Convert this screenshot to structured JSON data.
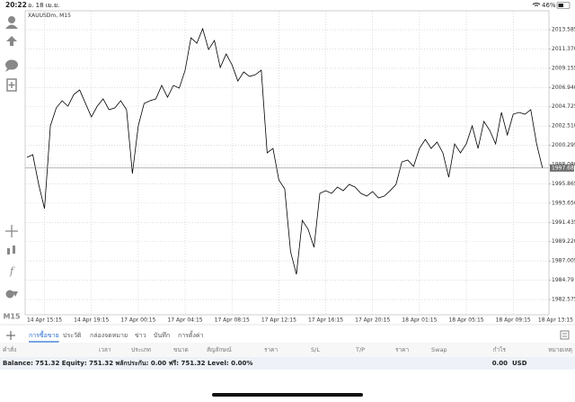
{
  "status_bar": {
    "time": "20:22",
    "date": "อ. 18 เม.ย.",
    "battery": "46%"
  },
  "timeframe": "M15",
  "chart_data": {
    "type": "line",
    "title": "XAUUSDm, M15",
    "color": "#000000",
    "values": [
      1998.91,
      1999.22,
      1995.81,
      1993.02,
      2002.53,
      2004.59,
      2005.42,
      2004.8,
      2006.14,
      2006.66,
      2005.11,
      2003.56,
      2004.8,
      2005.63,
      2004.39,
      2004.59,
      2005.42,
      2004.39,
      1997.05,
      2002.53,
      2005.11,
      2005.42,
      2005.63,
      2007.18,
      2005.83,
      2007.18,
      2006.87,
      2008.93,
      2012.65,
      2012.03,
      2013.69,
      2011.31,
      2012.35,
      2009.24,
      2010.79,
      2009.55,
      2007.69,
      2008.73,
      2008.21,
      2008.42,
      2008.93,
      1999.43,
      1999.94,
      1996.32,
      1995.29,
      1988.06,
      1985.47,
      1991.67,
      1990.64,
      1988.57,
      1994.77,
      1995.08,
      1994.77,
      1995.5,
      1995.08,
      1995.81,
      1995.5,
      1994.77,
      1994.46,
      1994.98,
      1994.26,
      1994.46,
      1995.08,
      1995.81,
      1998.39,
      1998.6,
      1997.87,
      1999.94,
      2000.98,
      1999.94,
      2000.67,
      1999.43,
      1996.63,
      2000.46,
      1999.43,
      2000.46,
      2002.53,
      1999.94,
      2003.04,
      2002.01,
      2000.46,
      2004.08,
      2001.49,
      2003.87,
      2004.08,
      2003.87,
      2004.39,
      2000.46,
      1997.69
    ],
    "xlim": [
      0,
      88
    ],
    "xticks": [
      {
        "value": 3,
        "label": "14 Apr 15:15"
      },
      {
        "value": 11,
        "label": "14 Apr 19:15"
      },
      {
        "value": 19,
        "label": "17 Apr 00:15"
      },
      {
        "value": 27,
        "label": "17 Apr 04:15"
      },
      {
        "value": 35,
        "label": "17 Apr 08:15"
      },
      {
        "value": 43,
        "label": "17 Apr 12:15"
      },
      {
        "value": 51,
        "label": "17 Apr 16:15"
      },
      {
        "value": 59,
        "label": "17 Apr 20:15"
      },
      {
        "value": 67,
        "label": "18 Apr 01:15"
      },
      {
        "value": 75,
        "label": "18 Apr 05:15"
      },
      {
        "value": 83,
        "label": "18 Apr 09:15"
      },
      {
        "value": 91,
        "label": "18 Apr 13:15"
      }
    ],
    "ylim": [
      1980.82,
      2015.76
    ],
    "yticks": [
      2013.585,
      {
        "value": 2011.37,
        "label": "2011.370"
      },
      2009.155,
      {
        "value": 2006.94,
        "label": "2006.940"
      },
      2004.725,
      {
        "value": 2002.51,
        "label": "2002.510"
      },
      2000.295,
      {
        "value": 1998.08,
        "label": "1998.080"
      },
      1995.865,
      {
        "value": 1993.65,
        "label": "1993.650"
      },
      1991.435,
      {
        "value": 1989.22,
        "label": "1989.220"
      },
      1987.005,
      1984.79,
      1982.575
    ],
    "grid": true,
    "current_price": 1997.687
  },
  "tabs": [
    "การซื้อขาย",
    "ประวัติ",
    "กล่องจดหมาย",
    "ข่าว",
    "บันทึก",
    "การตั้งค่า"
  ],
  "columns": [
    "คำสั่ง",
    "เวลา",
    "ประเภท",
    "ขนาด",
    "สัญลักษณ์",
    "ราคา",
    "S/L",
    "T/P",
    "ราคา",
    "Swap",
    "กำไร",
    "หมายเหตุ"
  ],
  "account": {
    "summary": "Balance: 751.32 Equity: 751.32 พลักประกัน: 0.00 ฟรี: 751.32 Level: 0.00%",
    "profit": "0.00",
    "currency": "USD"
  }
}
